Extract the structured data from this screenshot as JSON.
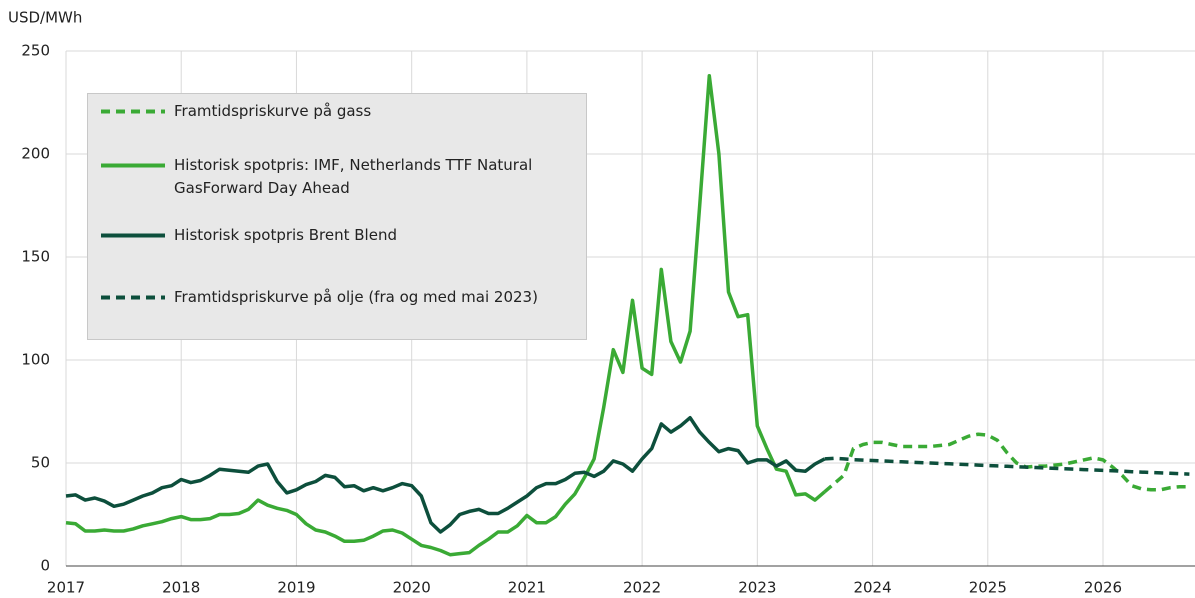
{
  "chart_data": {
    "type": "line",
    "y_label": "USD/MWh",
    "categories": [
      "2017",
      null,
      null,
      null,
      null,
      null,
      null,
      null,
      null,
      null,
      null,
      null,
      "2018",
      null,
      null,
      null,
      null,
      null,
      null,
      null,
      null,
      null,
      null,
      null,
      "2019",
      null,
      null,
      null,
      null,
      null,
      null,
      null,
      null,
      null,
      null,
      null,
      "2020",
      null,
      null,
      null,
      null,
      null,
      null,
      null,
      null,
      null,
      null,
      null,
      "2021",
      null,
      null,
      null,
      null,
      null,
      null,
      null,
      null,
      null,
      null,
      null,
      "2022",
      null,
      null,
      null,
      null,
      null,
      null,
      null,
      null,
      null,
      null,
      null,
      "2023",
      null,
      null,
      null,
      null,
      null,
      null,
      null,
      null,
      null,
      null,
      null,
      "2024",
      null,
      null,
      null,
      null,
      null,
      null,
      null,
      null,
      null,
      null,
      null,
      "2025",
      null,
      null,
      null,
      null,
      null,
      null,
      null,
      null,
      null,
      null,
      null,
      "2026",
      null,
      null,
      null,
      null,
      null,
      null,
      null,
      null,
      null
    ],
    "ylim": [
      0,
      250
    ],
    "yticks": [
      0,
      50,
      100,
      150,
      200,
      250
    ],
    "grid": true,
    "series": [
      {
        "name": "Framtidspriskurve på gass",
        "color": "#3aaa35",
        "dashed": true,
        "values": [
          null,
          null,
          null,
          null,
          null,
          null,
          null,
          null,
          null,
          null,
          null,
          null,
          null,
          null,
          null,
          null,
          null,
          null,
          null,
          null,
          null,
          null,
          null,
          null,
          null,
          null,
          null,
          null,
          null,
          null,
          null,
          null,
          null,
          null,
          null,
          null,
          null,
          null,
          null,
          null,
          null,
          null,
          null,
          null,
          null,
          null,
          null,
          null,
          null,
          null,
          null,
          null,
          null,
          null,
          null,
          null,
          null,
          null,
          null,
          null,
          null,
          null,
          null,
          null,
          null,
          null,
          null,
          null,
          null,
          null,
          null,
          null,
          null,
          null,
          null,
          null,
          null,
          null,
          null,
          36,
          40,
          44,
          57,
          59,
          60,
          60,
          59,
          58,
          58,
          58,
          58,
          58.5,
          59,
          61,
          63,
          64,
          63.5,
          61,
          55,
          50,
          48,
          48.5,
          48.5,
          49,
          49.5,
          50.5,
          51.5,
          52.5,
          51.5,
          48,
          44,
          39,
          37.5,
          37,
          37,
          38,
          38.5,
          38.5
        ]
      },
      {
        "name": "Historisk spotpris: IMF, Netherlands TTF Natural\nGasForward Day Ahead",
        "color": "#3aaa35",
        "dashed": false,
        "values": [
          21,
          20.5,
          17,
          17,
          17.5,
          17,
          17,
          18,
          19.5,
          20.5,
          21.5,
          23,
          24,
          22.5,
          22.5,
          23,
          25,
          25,
          25.5,
          27.5,
          32,
          29.5,
          28,
          27,
          25,
          20.5,
          17.5,
          16.5,
          14.5,
          12,
          12,
          12.5,
          14.5,
          17,
          17.5,
          16,
          13,
          10,
          9,
          7.5,
          5.5,
          6,
          6.5,
          10,
          13,
          16.5,
          16.5,
          19.5,
          24.5,
          21,
          21,
          24,
          30,
          35,
          43,
          52,
          77,
          105,
          94,
          129,
          96,
          93,
          144,
          109,
          99,
          114,
          175,
          238,
          200,
          133,
          121,
          122,
          68,
          57,
          47,
          46,
          34.5,
          35,
          32,
          36,
          null,
          null,
          null,
          null,
          null,
          null,
          null,
          null,
          null,
          null,
          null,
          null,
          null,
          null,
          null,
          null,
          null,
          null,
          null,
          null,
          null,
          null,
          null,
          null,
          null,
          null,
          null,
          null,
          null,
          null,
          null,
          null,
          null,
          null,
          null,
          null,
          null,
          null
        ]
      },
      {
        "name": "Historisk spotpris Brent Blend",
        "color": "#0d4f3c",
        "dashed": false,
        "values": [
          34,
          34.5,
          32,
          33,
          31.5,
          29,
          30,
          32,
          34,
          35.5,
          38,
          39,
          42,
          40.5,
          41.5,
          44,
          47,
          46.5,
          46,
          45.5,
          48.5,
          49.5,
          41,
          35.5,
          37,
          39.5,
          41,
          44,
          43,
          38.5,
          39,
          36.5,
          38,
          36.5,
          38,
          40,
          39,
          34,
          21,
          16.5,
          20,
          25,
          26.5,
          27.5,
          25.5,
          25.5,
          28,
          31,
          34,
          38,
          40,
          40,
          42,
          45,
          45.5,
          43.5,
          46,
          51,
          49.5,
          46,
          52,
          57,
          69,
          65,
          68,
          72,
          65,
          60,
          55.5,
          57,
          56,
          50,
          51.5,
          51.5,
          48.5,
          51,
          46.5,
          46,
          49.5,
          52,
          null,
          null,
          null,
          null,
          null,
          null,
          null,
          null,
          null,
          null,
          null,
          null,
          null,
          null,
          null,
          null,
          null,
          null,
          null,
          null,
          null,
          null,
          null,
          null,
          null,
          null,
          null,
          null,
          null,
          null,
          null,
          null,
          null,
          null,
          null,
          null,
          null,
          null
        ]
      },
      {
        "name": "Framtidspriskurve på olje (fra og med mai 2023)",
        "color": "#0d4f3c",
        "dashed": true,
        "values": [
          null,
          null,
          null,
          null,
          null,
          null,
          null,
          null,
          null,
          null,
          null,
          null,
          null,
          null,
          null,
          null,
          null,
          null,
          null,
          null,
          null,
          null,
          null,
          null,
          null,
          null,
          null,
          null,
          null,
          null,
          null,
          null,
          null,
          null,
          null,
          null,
          null,
          null,
          null,
          null,
          null,
          null,
          null,
          null,
          null,
          null,
          null,
          null,
          null,
          null,
          null,
          null,
          null,
          null,
          null,
          null,
          null,
          null,
          null,
          null,
          null,
          null,
          null,
          null,
          null,
          null,
          null,
          null,
          null,
          null,
          null,
          null,
          null,
          null,
          null,
          null,
          null,
          null,
          null,
          52,
          52.3,
          52,
          51.6,
          51.4,
          51.2,
          51,
          50.8,
          50.6,
          50.4,
          50.2,
          50,
          49.8,
          49.6,
          49.4,
          49.2,
          49,
          48.8,
          48.6,
          48.4,
          48.2,
          48,
          47.8,
          47.6,
          47.4,
          47.2,
          47,
          46.8,
          46.6,
          46.4,
          46.2,
          46,
          45.8,
          45.6,
          45.4,
          45.2,
          45,
          44.8,
          44.6
        ]
      }
    ]
  }
}
